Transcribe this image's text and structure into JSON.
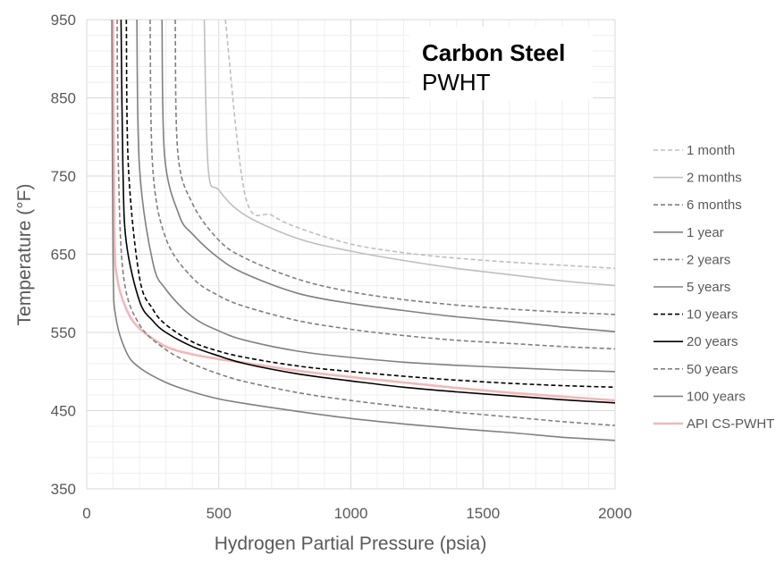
{
  "chart_data": {
    "type": "line",
    "title": "",
    "annotation": {
      "title": "Carbon Steel",
      "subtitle": "PWHT",
      "placement": "top-right"
    },
    "xlabel": "Hydrogen Partial Pressure (psia)",
    "ylabel": "Temperature (°F)",
    "xlim": [
      0,
      2000
    ],
    "ylim": [
      350,
      950
    ],
    "x_ticks": [
      "0",
      "500",
      "1000",
      "1500",
      "2000"
    ],
    "y_ticks": [
      "350",
      "450",
      "550",
      "650",
      "750",
      "850",
      "950"
    ],
    "grid": true,
    "legend_position": "right",
    "series": [
      {
        "name": "1 month",
        "color": "#bfbfbf",
        "dash": "dashed",
        "x": [
          525,
          600,
          700,
          800,
          1000,
          1200,
          1400,
          1600,
          1800,
          2000
        ],
        "y": [
          950,
          725,
          700,
          684,
          663,
          652,
          645,
          640,
          636,
          632
        ]
      },
      {
        "name": "2 months",
        "color": "#bfbfbf",
        "dash": "solid",
        "x": [
          445,
          460,
          500,
          600,
          800,
          1000,
          1200,
          1400,
          1600,
          1800,
          2000
        ],
        "y": [
          950,
          760,
          732,
          700,
          670,
          654,
          642,
          632,
          624,
          616,
          610
        ]
      },
      {
        "name": "6 months",
        "color": "#808080",
        "dash": "dashed",
        "x": [
          335,
          345,
          400,
          500,
          600,
          800,
          1000,
          1200,
          1400,
          1600,
          1800,
          2000
        ],
        "y": [
          950,
          780,
          715,
          668,
          645,
          618,
          602,
          592,
          585,
          580,
          576,
          573
        ]
      },
      {
        "name": "1 year",
        "color": "#808080",
        "dash": "solid",
        "x": [
          285,
          295,
          350,
          400,
          500,
          600,
          800,
          1000,
          1200,
          1400,
          1600,
          1800,
          2000
        ],
        "y": [
          950,
          775,
          700,
          676,
          645,
          625,
          600,
          587,
          578,
          570,
          564,
          557,
          551
        ]
      },
      {
        "name": "2 years",
        "color": "#808080",
        "dash": "dashed",
        "x": [
          240,
          250,
          300,
          400,
          500,
          600,
          800,
          1000,
          1200,
          1400,
          1600,
          1800,
          2000
        ],
        "y": [
          950,
          760,
          670,
          620,
          597,
          583,
          565,
          554,
          546,
          540,
          536,
          532,
          529
        ]
      },
      {
        "name": "5 years",
        "color": "#808080",
        "dash": "solid",
        "x": [
          190,
          200,
          250,
          300,
          400,
          500,
          600,
          800,
          1000,
          1200,
          1400,
          1600,
          1800,
          2000
        ],
        "y": [
          950,
          760,
          640,
          605,
          570,
          552,
          540,
          526,
          518,
          512,
          508,
          505,
          502,
          500
        ]
      },
      {
        "name": "10 years",
        "color": "#000000",
        "dash": "dashed",
        "x": [
          150,
          158,
          200,
          250,
          300,
          400,
          500,
          600,
          800,
          1000,
          1200,
          1400,
          1600,
          1800,
          2000
        ],
        "y": [
          950,
          760,
          620,
          580,
          560,
          538,
          526,
          518,
          507,
          500,
          494,
          489,
          485,
          482,
          480
        ]
      },
      {
        "name": "20 years",
        "color": "#000000",
        "dash": "solid",
        "x": [
          130,
          137,
          150,
          200,
          250,
          300,
          400,
          500,
          600,
          800,
          1000,
          1200,
          1400,
          1600,
          1800,
          2000
        ],
        "y": [
          950,
          760,
          665,
          590,
          565,
          550,
          532,
          520,
          510,
          497,
          488,
          480,
          474,
          469,
          464,
          460
        ]
      },
      {
        "name": "50 years",
        "color": "#808080",
        "dash": "dashed",
        "x": [
          115,
          120,
          140,
          200,
          300,
          400,
          500,
          600,
          800,
          1000,
          1200,
          1400,
          1600,
          1800,
          2000
        ],
        "y": [
          950,
          760,
          620,
          560,
          528,
          510,
          497,
          487,
          473,
          463,
          455,
          448,
          442,
          436,
          431
        ]
      },
      {
        "name": "100 years",
        "color": "#808080",
        "dash": "solid",
        "x": [
          95,
          100,
          110,
          150,
          200,
          300,
          400,
          500,
          600,
          800,
          1000,
          1200,
          1400,
          1600,
          1800,
          2000
        ],
        "y": [
          950,
          640,
          570,
          525,
          505,
          486,
          474,
          465,
          459,
          449,
          440,
          433,
          427,
          422,
          416,
          412
        ]
      },
      {
        "name": "API CS-PWHT",
        "color": "#f2b8b8",
        "dash": "solid",
        "x": [
          100,
          105,
          115,
          150,
          200,
          300,
          400,
          500,
          600,
          800,
          1000,
          1200,
          1400,
          1600,
          1800,
          2000
        ],
        "y": [
          950,
          680,
          620,
          580,
          555,
          532,
          522,
          516,
          511,
          501,
          493,
          486,
          479,
          473,
          468,
          463
        ]
      }
    ]
  }
}
